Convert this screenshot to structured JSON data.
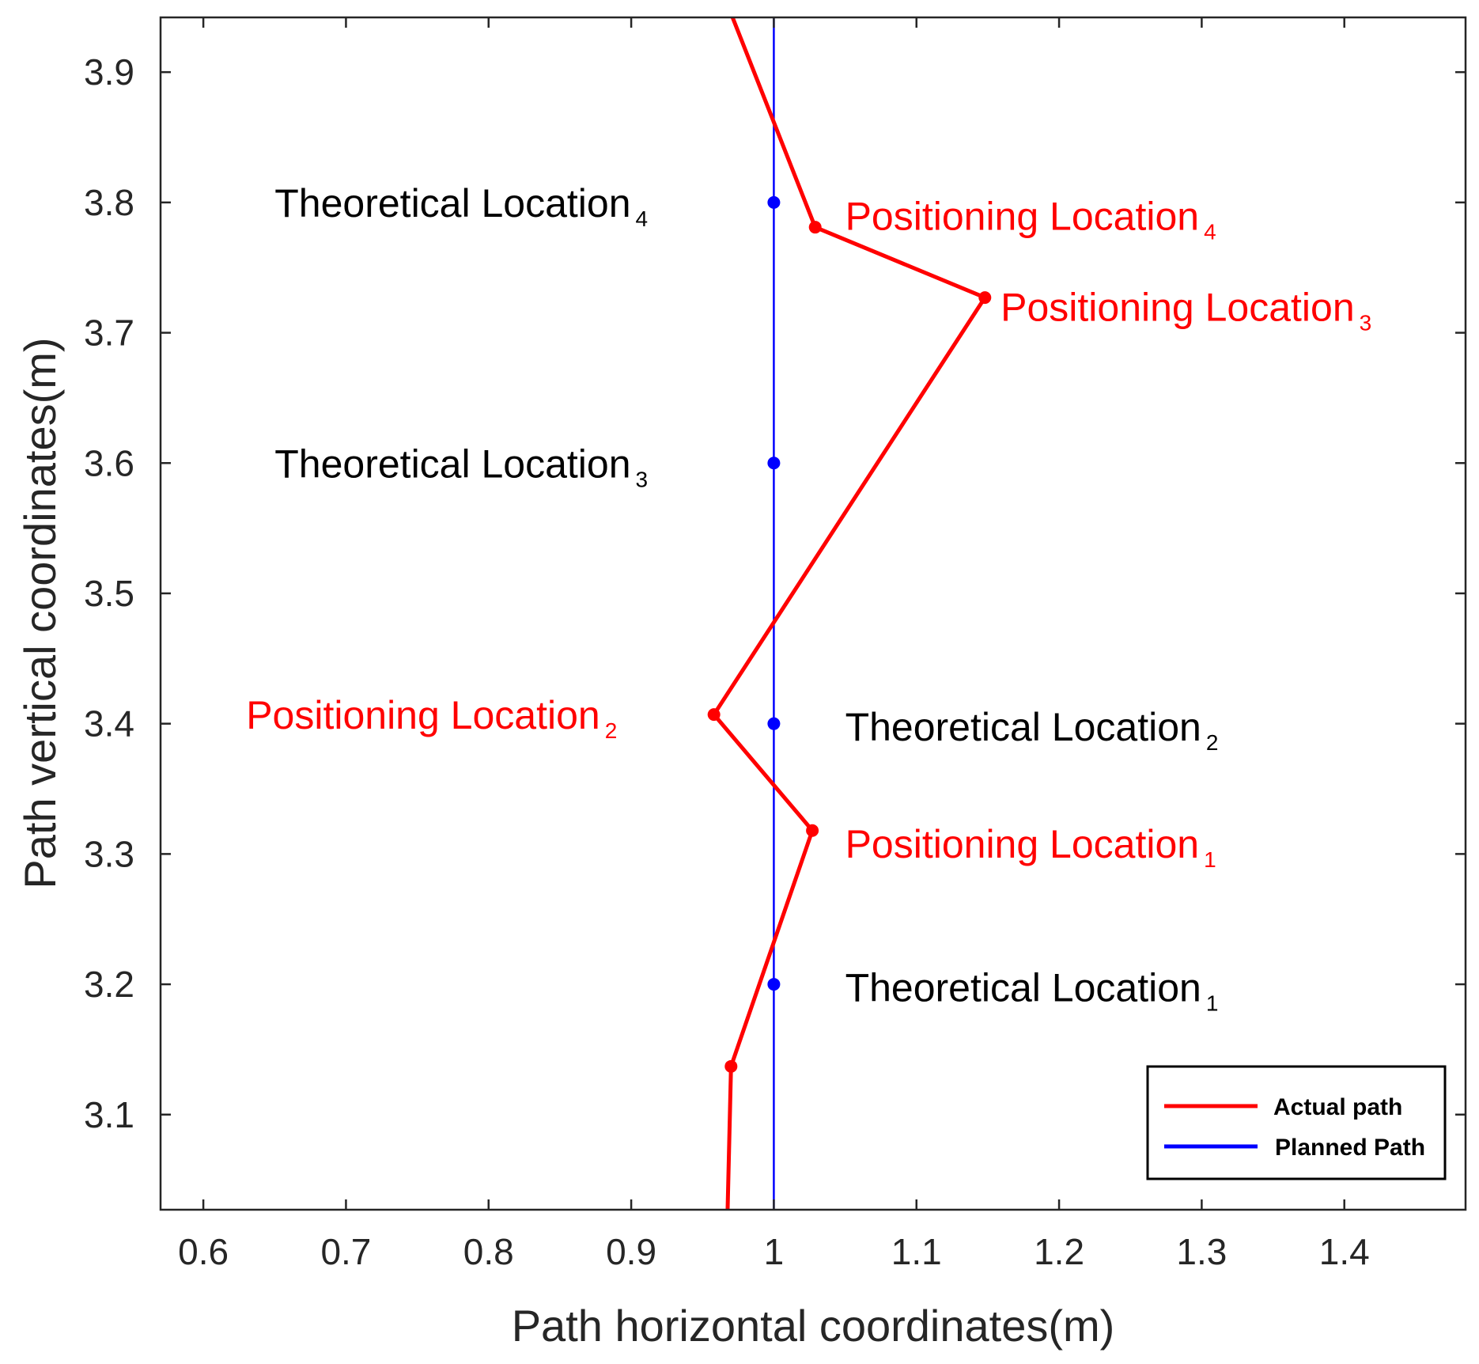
{
  "chart_data": {
    "type": "line",
    "xlabel": "Path horizontal coordinates(m)",
    "ylabel": "Path vertical coordinates(m)",
    "xlim": [
      0.57,
      1.485
    ],
    "ylim": [
      3.027,
      3.942
    ],
    "xticks": [
      0.6,
      0.7,
      0.8,
      0.9,
      1.0,
      1.1,
      1.2,
      1.3,
      1.4
    ],
    "xtick_labels": [
      "0.6",
      "0.7",
      "0.8",
      "0.9",
      "1",
      "1.1",
      "1.2",
      "1.3",
      "1.4"
    ],
    "yticks": [
      3.1,
      3.2,
      3.3,
      3.4,
      3.5,
      3.6,
      3.7,
      3.8,
      3.9
    ],
    "ytick_labels": [
      "3.1",
      "3.2",
      "3.3",
      "3.4",
      "3.5",
      "3.6",
      "3.7",
      "3.8",
      "3.9"
    ],
    "grid": false,
    "legend_position": "bottom-right",
    "series": [
      {
        "name": "Actual path",
        "color": "#ff0000",
        "line": [
          {
            "x": 0.967,
            "y": 3.0
          },
          {
            "x": 0.97,
            "y": 3.137
          },
          {
            "x": 1.027,
            "y": 3.318
          },
          {
            "x": 0.958,
            "y": 3.407
          },
          {
            "x": 1.148,
            "y": 3.727
          },
          {
            "x": 1.029,
            "y": 3.781
          },
          {
            "x": 0.97,
            "y": 3.945
          }
        ],
        "markers": [
          {
            "x": 0.97,
            "y": 3.137
          },
          {
            "x": 1.027,
            "y": 3.318
          },
          {
            "x": 0.958,
            "y": 3.407
          },
          {
            "x": 1.148,
            "y": 3.727
          },
          {
            "x": 1.029,
            "y": 3.781
          }
        ]
      },
      {
        "name": "Planned Path",
        "color": "#0000ff",
        "line": [
          {
            "x": 1.0,
            "y": 3.0
          },
          {
            "x": 1.0,
            "y": 3.95
          }
        ],
        "markers": [
          {
            "x": 1.0,
            "y": 3.2
          },
          {
            "x": 1.0,
            "y": 3.4
          },
          {
            "x": 1.0,
            "y": 3.6
          },
          {
            "x": 1.0,
            "y": 3.8
          }
        ]
      }
    ],
    "annotations": [
      {
        "main": "Theoretical Location",
        "sub": "4",
        "x": 0.65,
        "y": 3.8,
        "color": "#000000"
      },
      {
        "main": "Positioning Location",
        "sub": "4",
        "x": 1.05,
        "y": 3.79,
        "color": "#ff0000"
      },
      {
        "main": "Positioning Location",
        "sub": "3",
        "x": 1.159,
        "y": 3.72,
        "color": "#ff0000"
      },
      {
        "main": "Theoretical Location",
        "sub": "3",
        "x": 0.65,
        "y": 3.6,
        "color": "#000000"
      },
      {
        "main": "Positioning Location",
        "sub": "2",
        "x": 0.63,
        "y": 3.407,
        "color": "#ff0000"
      },
      {
        "main": "Theoretical Location",
        "sub": "2",
        "x": 1.05,
        "y": 3.398,
        "color": "#000000"
      },
      {
        "main": "Positioning Location",
        "sub": "1",
        "x": 1.05,
        "y": 3.308,
        "color": "#ff0000"
      },
      {
        "main": "Theoretical Location",
        "sub": "1",
        "x": 1.05,
        "y": 3.198,
        "color": "#000000"
      }
    ]
  }
}
